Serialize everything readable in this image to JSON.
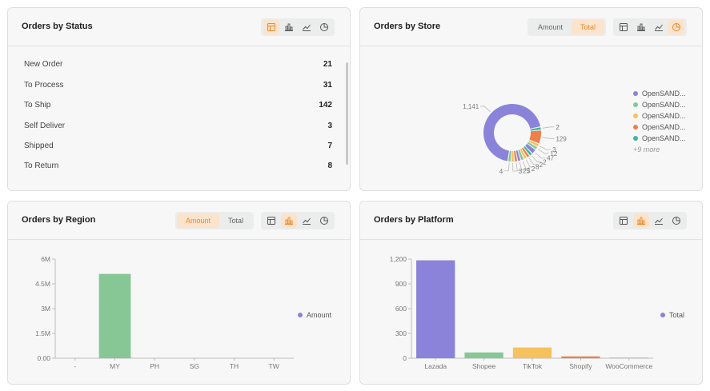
{
  "status_card": {
    "title": "Orders by Status",
    "rows": [
      {
        "label": "New Order",
        "value": "21"
      },
      {
        "label": "To Process",
        "value": "31"
      },
      {
        "label": "To Ship",
        "value": "142"
      },
      {
        "label": "Self Deliver",
        "value": "3"
      },
      {
        "label": "Shipped",
        "value": "7"
      },
      {
        "label": "To Return",
        "value": "8"
      }
    ]
  },
  "store_card": {
    "title": "Orders by Store",
    "toggle": [
      "Amount",
      "Total"
    ],
    "toggle_active": "Total",
    "legend": [
      {
        "label": "OpenSAND...",
        "color": "#8b83d9"
      },
      {
        "label": "OpenSAND...",
        "color": "#86c795"
      },
      {
        "label": "OpenSAND...",
        "color": "#f5c25d"
      },
      {
        "label": "OpenSAND...",
        "color": "#ef7f4c"
      },
      {
        "label": "OpenSAND...",
        "color": "#3cb89a"
      }
    ],
    "legend_more": "+9 more",
    "chart_data": {
      "type": "pie",
      "donut": true,
      "slices": [
        {
          "value": 1141,
          "color": "#8b83d9"
        },
        {
          "value": 2,
          "color": "#3cb89a"
        },
        {
          "value": 129,
          "color": "#ef7f4c"
        },
        {
          "value": 3,
          "color": "#f5c25d"
        },
        {
          "value": 12,
          "color": "#86c795"
        },
        {
          "value": 47,
          "color": "#8b83d9"
        },
        {
          "value": 2,
          "color": "#3cb89a"
        },
        {
          "value": 2,
          "color": "#ef7f4c"
        },
        {
          "value": 8,
          "color": "#f5c25d"
        },
        {
          "value": 2,
          "color": "#86c795"
        },
        {
          "value": 1,
          "color": "#8b83d9"
        },
        {
          "value": 25,
          "color": "#ef7f4c"
        },
        {
          "value": 3,
          "color": "#f5c25d"
        },
        {
          "value": 4,
          "color": "#86c795"
        }
      ]
    }
  },
  "region_card": {
    "title": "Orders by Region",
    "toggle": [
      "Amount",
      "Total"
    ],
    "toggle_active": "Amount",
    "legend": [
      {
        "label": "Amount",
        "color": "#8b83d9"
      }
    ],
    "chart_data": {
      "type": "bar",
      "categories": [
        "-",
        "MY",
        "PH",
        "SG",
        "TH",
        "TW"
      ],
      "values": [
        0,
        5100000,
        0,
        0,
        0,
        0
      ],
      "bar_colors": [
        "#86c795",
        "#86c795",
        "#86c795",
        "#86c795",
        "#86c795",
        "#86c795"
      ],
      "ylim": [
        0,
        6000000
      ],
      "yticks": [
        {
          "value": 0,
          "label": "0.00"
        },
        {
          "value": 1500000,
          "label": "1.5M"
        },
        {
          "value": 3000000,
          "label": "3M"
        },
        {
          "value": 4500000,
          "label": "4.5M"
        },
        {
          "value": 6000000,
          "label": "6M"
        }
      ],
      "series_name": "Amount"
    }
  },
  "platform_card": {
    "title": "Orders by Platform",
    "legend": [
      {
        "label": "Total",
        "color": "#8b83d9"
      }
    ],
    "chart_data": {
      "type": "bar",
      "categories": [
        "Lazada",
        "Shopee",
        "TikTok",
        "Shopify",
        "WooCommerce"
      ],
      "values": [
        1185,
        70,
        130,
        22,
        5
      ],
      "bar_colors": [
        "#8b83d9",
        "#86c795",
        "#f5c25d",
        "#ef7f4c",
        "#3cb89a"
      ],
      "ylim": [
        0,
        1200
      ],
      "yticks": [
        {
          "value": 0,
          "label": "0"
        },
        {
          "value": 300,
          "label": "300"
        },
        {
          "value": 600,
          "label": "600"
        },
        {
          "value": 900,
          "label": "900"
        },
        {
          "value": 1200,
          "label": "1,200"
        }
      ],
      "series_name": "Total"
    }
  },
  "accent_color": "#e98a2e"
}
